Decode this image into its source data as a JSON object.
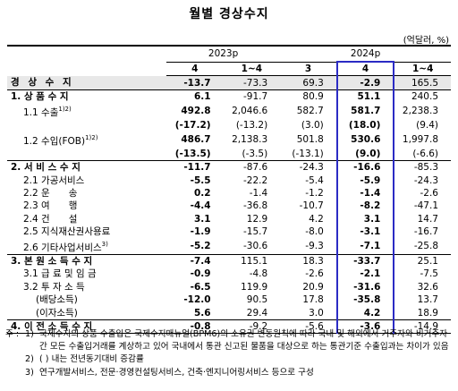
{
  "title": "월별 경상수지",
  "unit": "(억달러, %)",
  "table": {
    "groups": [
      {
        "label": "2023p"
      },
      {
        "label": "2024p"
      }
    ],
    "columns": [
      "4",
      "1~4",
      "3",
      "4",
      "1~4"
    ],
    "rows": [
      {
        "label": "경 상 수 지",
        "cells": [
          "-13.7",
          "-73.3",
          "69.3",
          "-2.9",
          "165.5"
        ]
      },
      {
        "label": "1. 상 품 수 지",
        "cells": [
          "6.1",
          "-91.7",
          "80.9",
          "51.1",
          "240.5"
        ]
      },
      {
        "label": "1.1 수출",
        "refs": "1)2)",
        "cells": [
          "492.8",
          "2,046.6",
          "582.7",
          "581.7",
          "2,238.3"
        ]
      },
      {
        "cells": [
          "(-17.2)",
          "(-13.2)",
          "(3.0)",
          "(18.0)",
          "(9.4)"
        ]
      },
      {
        "label": "1.2 수입(FOB)",
        "refs": "1)2)",
        "cells": [
          "486.7",
          "2,138.3",
          "501.8",
          "530.6",
          "1,997.8"
        ]
      },
      {
        "cells": [
          "(-13.5)",
          "(-3.5)",
          "(-13.1)",
          "(9.0)",
          "(-6.6)"
        ]
      },
      {
        "label": "2. 서 비 스 수 지",
        "cells": [
          "-11.7",
          "-87.6",
          "-24.3",
          "-16.6",
          "-85.3"
        ]
      },
      {
        "label": "2.1 가공서비스",
        "cells": [
          "-5.5",
          "-22.2",
          "-5.4",
          "-5.9",
          "-24.3"
        ]
      },
      {
        "label": "2.2 운　　송",
        "cells": [
          "0.2",
          "-1.4",
          "-1.2",
          "-1.4",
          "-2.6"
        ]
      },
      {
        "label": "2.3 여　　행",
        "cells": [
          "-4.4",
          "-36.8",
          "-10.7",
          "-8.2",
          "-47.1"
        ]
      },
      {
        "label": "2.4 건　　설",
        "cells": [
          "3.1",
          "12.9",
          "4.2",
          "3.1",
          "14.7"
        ]
      },
      {
        "label": "2.5 지식재산권사용료",
        "cells": [
          "-1.9",
          "-15.7",
          "-8.0",
          "-3.1",
          "-16.7"
        ]
      },
      {
        "label": "2.6 기타사업서비스",
        "refs": "3)",
        "cells": [
          "-5.2",
          "-30.6",
          "-9.3",
          "-7.1",
          "-25.8"
        ]
      },
      {
        "label": "3. 본 원 소 득 수 지",
        "cells": [
          "-7.4",
          "115.1",
          "18.3",
          "-33.7",
          "25.1"
        ]
      },
      {
        "label": "3.1 급 료 및 임 금",
        "cells": [
          "-0.9",
          "-4.8",
          "-2.6",
          "-2.1",
          "-7.5"
        ]
      },
      {
        "label": "3.2 투 자 소 득",
        "cells": [
          "-6.5",
          "119.9",
          "20.9",
          "-31.6",
          "32.6"
        ]
      },
      {
        "label": "(배당소득)",
        "cells": [
          "-12.0",
          "90.5",
          "17.8",
          "-35.8",
          "13.7"
        ]
      },
      {
        "label": "(이자소득)",
        "cells": [
          "5.6",
          "29.4",
          "3.0",
          "4.2",
          "18.9"
        ]
      },
      {
        "label": "4. 이 전 소 득 수 지",
        "cells": [
          "-0.8",
          "-9.2",
          "-5.6",
          "-3.6",
          "-14.9"
        ]
      }
    ]
  },
  "notes": {
    "prefix": "주 :",
    "items": [
      {
        "mark": "1)",
        "text": "국제수지의 상품 수출입은 국제수지매뉴얼(BPM6)의 소유권 변동원칙에 따라 국내 및 해외에서 거주자와 비거주자 간 모든 수출입거래를 계상하고 있어 국내에서 통관 신고된 물품을 대상으로 하는 통관기준 수출입과는 차이가 있음"
      },
      {
        "mark": "2)",
        "text": "( ) 내는 전년동기대비 증감률"
      },
      {
        "mark": "3)",
        "text": "연구개발서비스, 전문·경영컨설팅서비스, 건축·엔지니어링서비스 등으로 구성"
      }
    ]
  }
}
